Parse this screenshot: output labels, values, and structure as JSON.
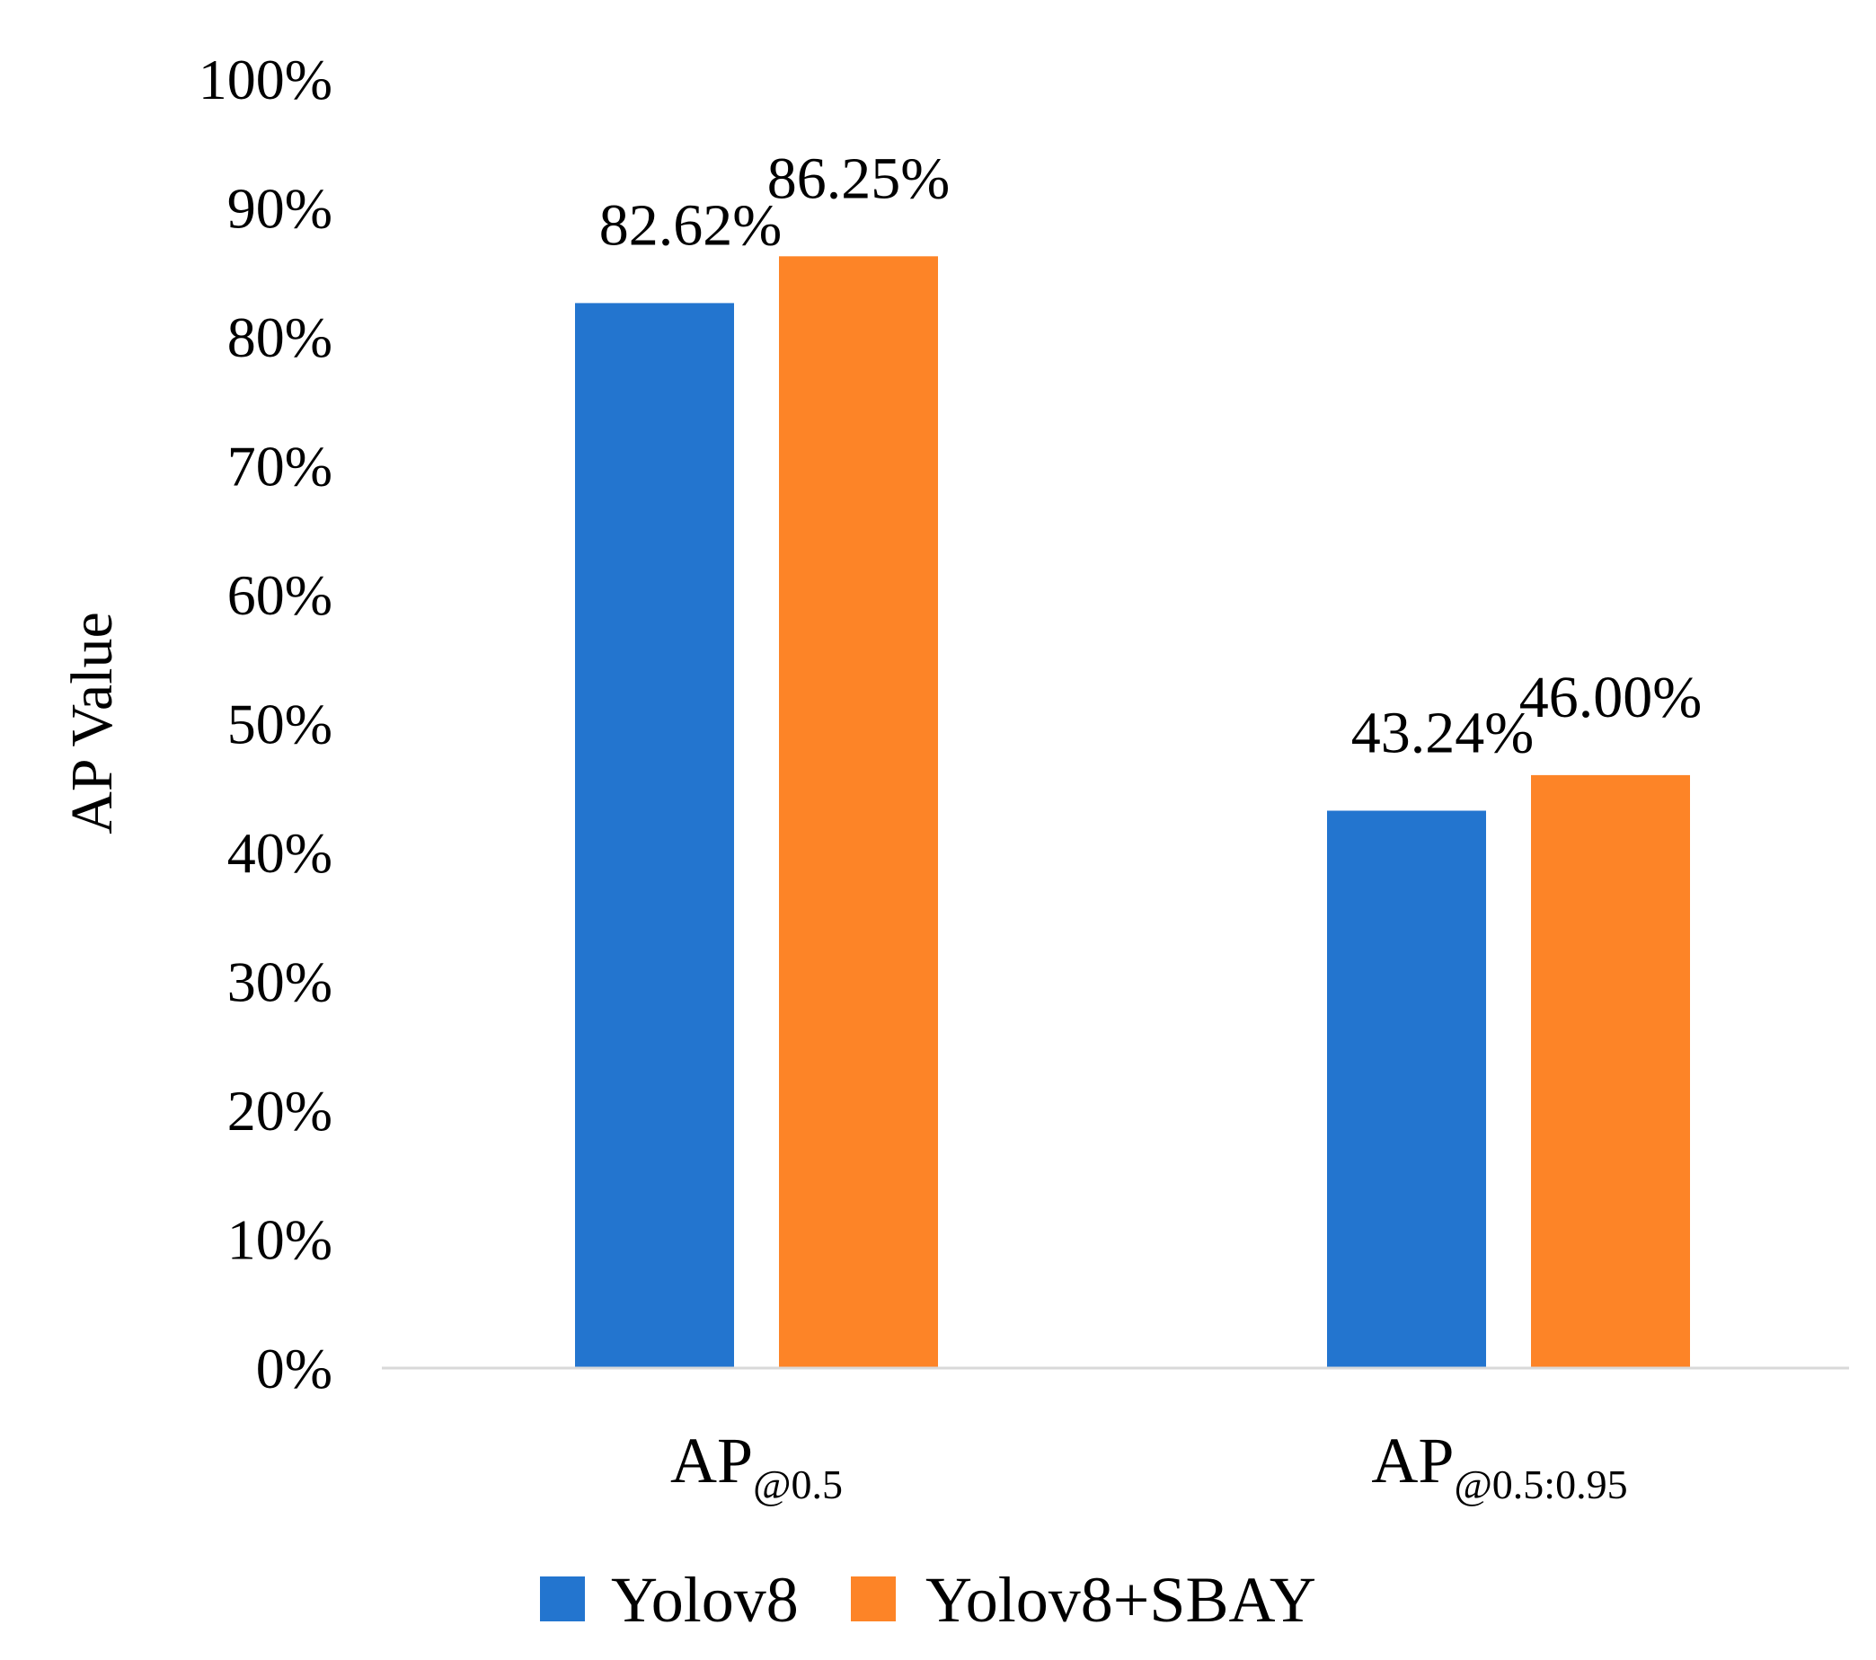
{
  "chart_data": {
    "type": "bar",
    "title": "",
    "xlabel": "",
    "ylabel": "AP Value",
    "ylim": [
      0,
      100
    ],
    "y_ticks": [
      {
        "value": 0,
        "label": "0%"
      },
      {
        "value": 10,
        "label": "10%"
      },
      {
        "value": 20,
        "label": "20%"
      },
      {
        "value": 30,
        "label": "30%"
      },
      {
        "value": 40,
        "label": "40%"
      },
      {
        "value": 50,
        "label": "50%"
      },
      {
        "value": 60,
        "label": "60%"
      },
      {
        "value": 70,
        "label": "70%"
      },
      {
        "value": 80,
        "label": "80%"
      },
      {
        "value": 90,
        "label": "90%"
      },
      {
        "value": 100,
        "label": "100%"
      }
    ],
    "categories": [
      {
        "base": "AP",
        "sub": "@0.5"
      },
      {
        "base": "AP",
        "sub": "@0.5:0.95"
      }
    ],
    "series": [
      {
        "name": "Yolov8",
        "color": "#2375CF",
        "values": [
          82.62,
          43.24
        ],
        "labels": [
          "82.62%",
          "43.24%"
        ]
      },
      {
        "name": "Yolov8+SBAY",
        "color": "#FD8427",
        "values": [
          86.25,
          46.0
        ],
        "labels": [
          "86.25%",
          "46.00%"
        ]
      }
    ],
    "grid": false,
    "legend_position": "bottom",
    "axis_line_color": "#D9D9D9"
  }
}
